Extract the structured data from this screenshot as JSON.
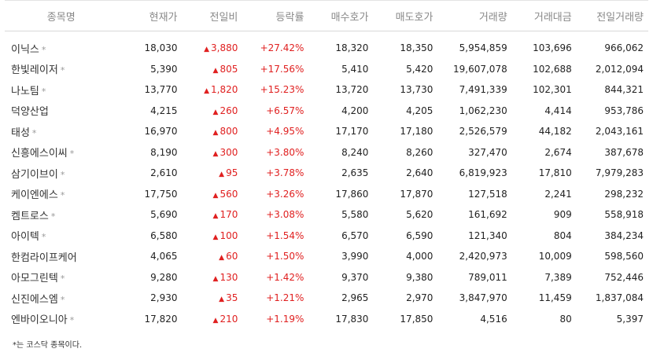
{
  "headers": [
    "종목명",
    "현재가",
    "전일비",
    "등락률",
    "매수호가",
    "매도호가",
    "거래량",
    "거래대금",
    "전일거래량"
  ],
  "rows": [
    {
      "name": "이닉스",
      "kosdaq": true,
      "price": "18,030",
      "change": "3,880",
      "rate": "+27.42%",
      "bid": "18,320",
      "ask": "18,350",
      "volume": "5,954,859",
      "amount": "103,696",
      "prev_volume": "966,062"
    },
    {
      "name": "한빛레이저",
      "kosdaq": true,
      "price": "5,390",
      "change": "805",
      "rate": "+17.56%",
      "bid": "5,410",
      "ask": "5,420",
      "volume": "19,607,078",
      "amount": "102,688",
      "prev_volume": "2,012,094"
    },
    {
      "name": "나노팀",
      "kosdaq": true,
      "price": "13,770",
      "change": "1,820",
      "rate": "+15.23%",
      "bid": "13,720",
      "ask": "13,730",
      "volume": "7,491,339",
      "amount": "102,301",
      "prev_volume": "844,321"
    },
    {
      "name": "덕양산업",
      "kosdaq": false,
      "price": "4,215",
      "change": "260",
      "rate": "+6.57%",
      "bid": "4,200",
      "ask": "4,205",
      "volume": "1,062,230",
      "amount": "4,414",
      "prev_volume": "953,786"
    },
    {
      "name": "태성",
      "kosdaq": true,
      "price": "16,970",
      "change": "800",
      "rate": "+4.95%",
      "bid": "17,170",
      "ask": "17,180",
      "volume": "2,526,579",
      "amount": "44,182",
      "prev_volume": "2,043,161"
    },
    {
      "name": "신흥에스이씨",
      "kosdaq": true,
      "price": "8,190",
      "change": "300",
      "rate": "+3.80%",
      "bid": "8,240",
      "ask": "8,260",
      "volume": "327,470",
      "amount": "2,674",
      "prev_volume": "387,678"
    },
    {
      "name": "삼기이브이",
      "kosdaq": true,
      "price": "2,610",
      "change": "95",
      "rate": "+3.78%",
      "bid": "2,635",
      "ask": "2,640",
      "volume": "6,819,923",
      "amount": "17,810",
      "prev_volume": "7,979,283"
    },
    {
      "name": "케이엔에스",
      "kosdaq": true,
      "price": "17,750",
      "change": "560",
      "rate": "+3.26%",
      "bid": "17,860",
      "ask": "17,870",
      "volume": "127,518",
      "amount": "2,241",
      "prev_volume": "298,232"
    },
    {
      "name": "켐트로스",
      "kosdaq": true,
      "price": "5,690",
      "change": "170",
      "rate": "+3.08%",
      "bid": "5,580",
      "ask": "5,620",
      "volume": "161,692",
      "amount": "909",
      "prev_volume": "558,918"
    },
    {
      "name": "아이텍",
      "kosdaq": true,
      "price": "6,580",
      "change": "100",
      "rate": "+1.54%",
      "bid": "6,570",
      "ask": "6,590",
      "volume": "121,340",
      "amount": "804",
      "prev_volume": "384,234"
    },
    {
      "name": "한컴라이프케어",
      "kosdaq": false,
      "price": "4,065",
      "change": "60",
      "rate": "+1.50%",
      "bid": "3,990",
      "ask": "4,000",
      "volume": "2,420,973",
      "amount": "10,009",
      "prev_volume": "598,560"
    },
    {
      "name": "아모그린텍",
      "kosdaq": true,
      "price": "9,280",
      "change": "130",
      "rate": "+1.42%",
      "bid": "9,370",
      "ask": "9,380",
      "volume": "789,011",
      "amount": "7,389",
      "prev_volume": "752,446"
    },
    {
      "name": "신진에스엠",
      "kosdaq": true,
      "price": "2,930",
      "change": "35",
      "rate": "+1.21%",
      "bid": "2,965",
      "ask": "2,970",
      "volume": "3,847,970",
      "amount": "11,459",
      "prev_volume": "1,837,084"
    },
    {
      "name": "엔바이오니아",
      "kosdaq": true,
      "price": "17,820",
      "change": "210",
      "rate": "+1.19%",
      "bid": "17,830",
      "ask": "17,850",
      "volume": "4,516",
      "amount": "80",
      "prev_volume": "5,397"
    }
  ],
  "kosdaq_marker": "*",
  "up_symbol": "▲",
  "up_color": "#e02020",
  "footnote": "*는 코스닥 종목이다."
}
